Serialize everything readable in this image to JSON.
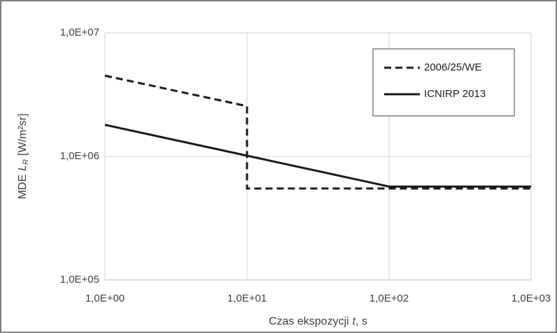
{
  "chart_data": {
    "type": "line",
    "x_label": {
      "text": "Czas ekspozycji",
      "symbol": "t",
      "unit": ", s"
    },
    "y_label": {
      "text": "MDE",
      "symbol": "L",
      "subscript": "R",
      "unit": "[W/m²sr]"
    },
    "log_x": true,
    "log_y": true,
    "grid": true,
    "legend": "upper right",
    "xlim": [
      1,
      1000
    ],
    "xticks": [
      {
        "value": 1,
        "label": "1,0E+00"
      },
      {
        "value": 10,
        "label": "1,0E+01"
      },
      {
        "value": 100,
        "label": "1,0E+02"
      },
      {
        "value": 1000,
        "label": "1,0E+03"
      }
    ],
    "ylim": [
      100000,
      10000000
    ],
    "yticks": [
      {
        "value": 100000,
        "label": "1,0E+05"
      },
      {
        "value": 1000000,
        "label": "1,0E+06"
      },
      {
        "value": 10000000,
        "label": "1,0E+07"
      }
    ],
    "series": [
      {
        "name": "2006/25/WE",
        "color": "#1a1a1a",
        "dashed": true,
        "x": [
          1,
          10,
          10,
          1000
        ],
        "values": [
          4500000,
          2550000,
          550000,
          550000
        ]
      },
      {
        "name": "ICNIRP 2013",
        "color": "#1a1a1a",
        "dashed": false,
        "x": [
          1,
          100,
          1000
        ],
        "values": [
          1800000,
          570000,
          570000
        ]
      }
    ]
  }
}
